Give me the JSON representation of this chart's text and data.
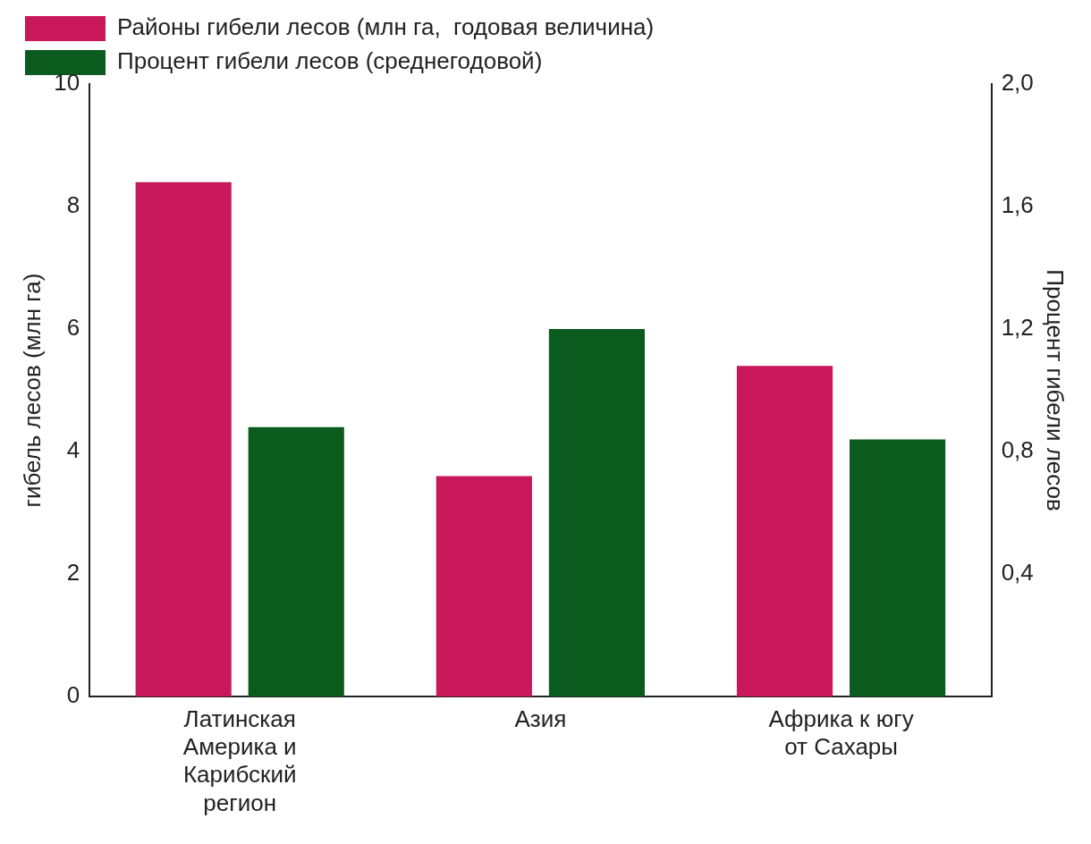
{
  "chart_data": {
    "type": "bar",
    "categories": [
      "Латинская Америка и Карибский регион",
      "Азия",
      "Африка к югу от Сахары"
    ],
    "series": [
      {
        "name": "Районы гибели лесов (млн га,  годовая величина)",
        "color": "#c8185a",
        "values": [
          8.4,
          3.6,
          5.4
        ]
      },
      {
        "name": "Процент гибели лесов (среднегодовой)",
        "color": "#0b5a1e",
        "values": [
          0.88,
          1.2,
          0.84
        ],
        "axis": "y2"
      }
    ],
    "ylabel": "гибель лесов (млн га)",
    "y2label": "Процент гибели лесов",
    "ylim": [
      0,
      10
    ],
    "yticks": [
      0,
      2,
      4,
      6,
      8,
      10
    ],
    "y2lim": [
      0,
      2.0
    ],
    "y2ticks": [
      {
        "value": 0.4,
        "label": "0,4"
      },
      {
        "value": 0.8,
        "label": "0,8"
      },
      {
        "value": 1.2,
        "label": "1,2"
      },
      {
        "value": 1.6,
        "label": "1,6"
      },
      {
        "value": 2.0,
        "label": "2,0"
      }
    ],
    "grid": false,
    "legend": "top left"
  }
}
